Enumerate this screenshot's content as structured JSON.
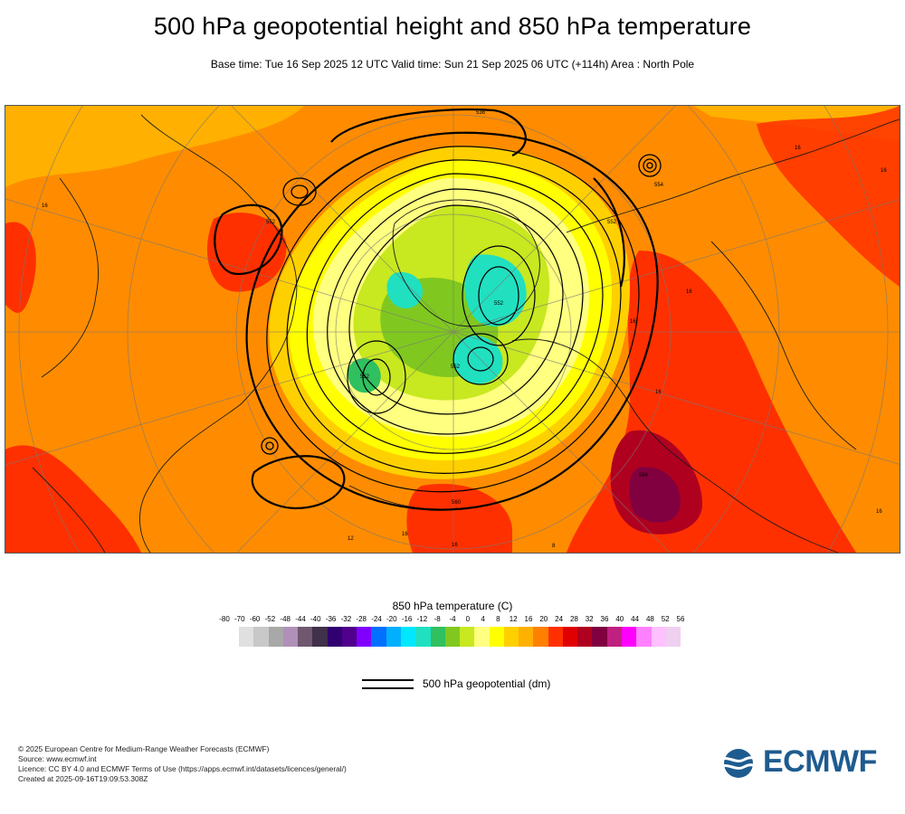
{
  "title": "500 hPa geopotential height and 850 hPa temperature",
  "subtitle": "Base time: Tue 16 Sep 2025 12 UTC Valid time: Sun 21 Sep 2025 06 UTC (+114h) Area : North Pole",
  "colorbar": {
    "title": "850 hPa temperature (C)",
    "ticks": [
      "-80",
      "-70",
      "-60",
      "-52",
      "-48",
      "-44",
      "-40",
      "-36",
      "-32",
      "-28",
      "-24",
      "-20",
      "-16",
      "-12",
      "-8",
      "-4",
      "0",
      "4",
      "8",
      "12",
      "16",
      "20",
      "24",
      "28",
      "32",
      "36",
      "40",
      "44",
      "48",
      "52",
      "56"
    ],
    "colors": [
      "#e0e0e0",
      "#c8c8c8",
      "#a8a8a8",
      "#b090b8",
      "#705870",
      "#40304a",
      "#300070",
      "#50008c",
      "#8000ff",
      "#0070ff",
      "#00b0ff",
      "#00e8ff",
      "#20e0c0",
      "#30c060",
      "#80c820",
      "#c8e820",
      "#ffff80",
      "#ffff00",
      "#ffd000",
      "#ffb000",
      "#ff8000",
      "#ff3000",
      "#e00000",
      "#b00020",
      "#800040",
      "#c02080",
      "#ff00ff",
      "#ff80ff",
      "#ffc0ff",
      "#f0d0f0",
      "#e8e8e8"
    ]
  },
  "legend": {
    "geopotential_label": "500 hPa geopotential (dm)"
  },
  "map_labels": [
    "536",
    "554",
    "16",
    "16",
    "552",
    "16",
    "552",
    "16",
    "552",
    "8",
    "12",
    "16",
    "16",
    "560",
    "552",
    "584",
    "16",
    "16",
    "16",
    "552"
  ],
  "credits": [
    "© 2025 European Centre for Medium-Range Weather Forecasts (ECMWF)",
    "Source: www.ecmwf.int",
    "Licence: CC BY 4.0 and ECMWF Terms of Use (https://apps.ecmwf.int/datasets/licences/general/)",
    "Created at 2025-09-16T19:09:53.308Z"
  ],
  "logo_text": "ECMWF",
  "colors": {
    "brand": "#1e5b8f",
    "background_field": "#ff8c00"
  }
}
